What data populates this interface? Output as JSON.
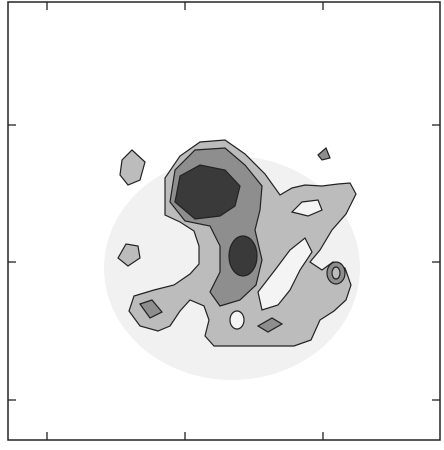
{
  "chart_data": {
    "type": "contour"
  }
}
